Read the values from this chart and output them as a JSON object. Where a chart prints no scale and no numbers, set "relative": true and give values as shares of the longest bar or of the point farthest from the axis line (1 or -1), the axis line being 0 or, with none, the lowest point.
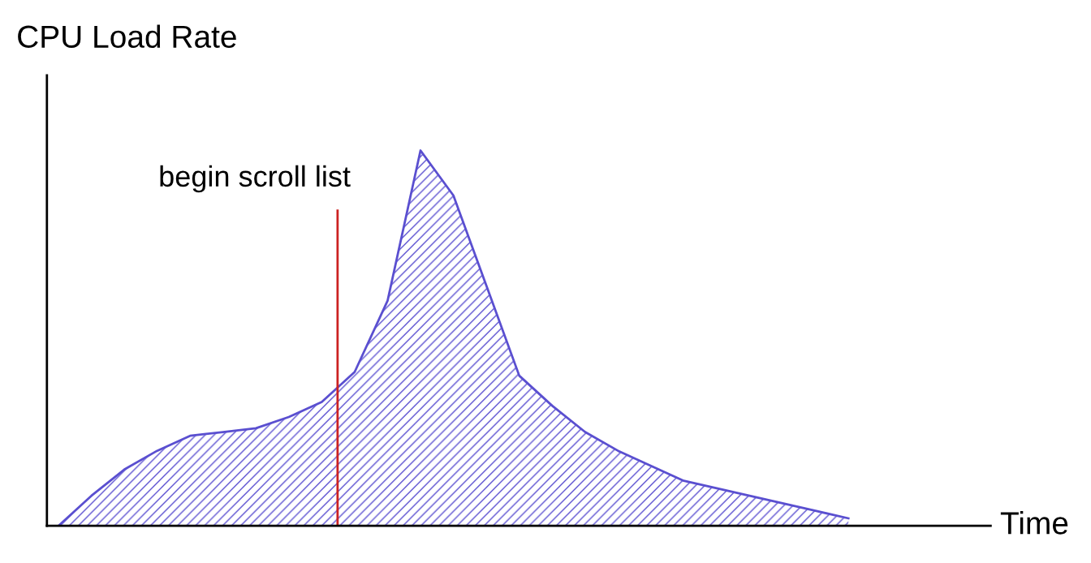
{
  "chart_data": {
    "type": "area",
    "relative": true,
    "ylabel": "CPU Load Rate",
    "xlabel": "Time",
    "categories": [
      null,
      null,
      null,
      null,
      null,
      null,
      null,
      null,
      null,
      null,
      null,
      null,
      null,
      null,
      null,
      null,
      null,
      null,
      null,
      null,
      null,
      null,
      null,
      null,
      null
    ],
    "series": [
      {
        "color": "#5a4fd0",
        "values": [
          0,
          0.08,
          0.15,
          0.2,
          0.24,
          0.25,
          0.26,
          0.29,
          0.33,
          0.41,
          0.6,
          1,
          0.88,
          0.64,
          0.4,
          0.32,
          0.25,
          0.2,
          0.16,
          0.12,
          0.1,
          0.08,
          0.06,
          0.04,
          0.02
        ]
      }
    ],
    "annotations": [
      "begin scroll list"
    ],
    "grid": false,
    "legend": false
  }
}
